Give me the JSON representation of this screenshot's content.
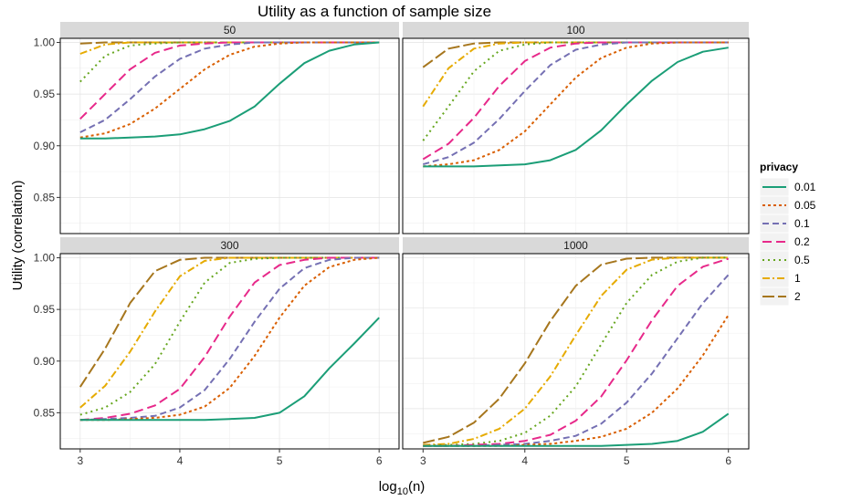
{
  "chart_data": {
    "type": "line",
    "title": "Utility as a function of sample size",
    "xlabel_main": "log",
    "xlabel_sub": "10",
    "xlabel_tail": "(n)",
    "ylabel": "Utility (correlation)",
    "xlim": [
      2.8,
      6.2
    ],
    "x_ticks": [
      3,
      4,
      5,
      6
    ],
    "legend": {
      "title": "privacy",
      "position": "right",
      "entries": [
        "0.01",
        "0.05",
        "0.1",
        "0.2",
        "0.5",
        "1",
        "2"
      ]
    },
    "series_styles": [
      {
        "name": "0.01",
        "color": "#1B9E77",
        "dash": "solid"
      },
      {
        "name": "0.05",
        "color": "#D95F02",
        "dash": "dotted-short"
      },
      {
        "name": "0.1",
        "color": "#7570B3",
        "dash": "dashed"
      },
      {
        "name": "0.2",
        "color": "#E7298A",
        "dash": "longdash"
      },
      {
        "name": "0.5",
        "color": "#66A61E",
        "dash": "dotted"
      },
      {
        "name": "1",
        "color": "#E6AB02",
        "dash": "dotdash"
      },
      {
        "name": "2",
        "color": "#A6761D",
        "dash": "twodash"
      }
    ],
    "x": [
      3.0,
      3.25,
      3.5,
      3.75,
      4.0,
      4.25,
      4.5,
      4.75,
      5.0,
      5.25,
      5.5,
      5.75,
      6.0
    ],
    "panels": [
      {
        "label": "50",
        "ylim": [
          0.815,
          1.004
        ],
        "y_ticks": [
          "0.85",
          "0.90",
          "0.95",
          "1.00"
        ],
        "series": [
          {
            "name": "0.01",
            "values": [
              0.907,
              0.907,
              0.908,
              0.909,
              0.911,
              0.916,
              0.924,
              0.938,
              0.96,
              0.98,
              0.992,
              0.998,
              1.0
            ]
          },
          {
            "name": "0.05",
            "values": [
              0.908,
              0.912,
              0.921,
              0.936,
              0.955,
              0.974,
              0.988,
              0.996,
              0.999,
              1.0,
              1.0,
              1.0,
              1.0
            ]
          },
          {
            "name": "0.1",
            "values": [
              0.913,
              0.925,
              0.945,
              0.967,
              0.984,
              0.994,
              0.998,
              1.0,
              1.0,
              1.0,
              1.0,
              1.0,
              1.0
            ]
          },
          {
            "name": "0.2",
            "values": [
              0.926,
              0.95,
              0.974,
              0.99,
              0.997,
              0.999,
              1.0,
              1.0,
              1.0,
              1.0,
              1.0,
              1.0,
              1.0
            ]
          },
          {
            "name": "0.5",
            "values": [
              0.962,
              0.987,
              0.997,
              0.999,
              1.0,
              1.0,
              1.0,
              1.0,
              1.0,
              1.0,
              1.0,
              1.0,
              1.0
            ]
          },
          {
            "name": "1",
            "values": [
              0.989,
              0.998,
              1.0,
              1.0,
              1.0,
              1.0,
              1.0,
              1.0,
              1.0,
              1.0,
              1.0,
              1.0,
              1.0
            ]
          },
          {
            "name": "2",
            "values": [
              0.999,
              1.0,
              1.0,
              1.0,
              1.0,
              1.0,
              1.0,
              1.0,
              1.0,
              1.0,
              1.0,
              1.0,
              1.0
            ]
          }
        ]
      },
      {
        "label": "100",
        "ylim": [
          0.815,
          1.004
        ],
        "y_ticks": [],
        "series": [
          {
            "name": "0.01",
            "values": [
              0.88,
              0.88,
              0.88,
              0.881,
              0.882,
              0.886,
              0.896,
              0.915,
              0.94,
              0.963,
              0.981,
              0.991,
              0.995
            ]
          },
          {
            "name": "0.05",
            "values": [
              0.88,
              0.882,
              0.886,
              0.896,
              0.914,
              0.94,
              0.966,
              0.985,
              0.995,
              0.999,
              1.0,
              1.0,
              1.0
            ]
          },
          {
            "name": "0.1",
            "values": [
              0.882,
              0.889,
              0.903,
              0.926,
              0.953,
              0.978,
              0.993,
              0.998,
              1.0,
              1.0,
              1.0,
              1.0,
              1.0
            ]
          },
          {
            "name": "0.2",
            "values": [
              0.887,
              0.902,
              0.927,
              0.958,
              0.982,
              0.995,
              0.999,
              1.0,
              1.0,
              1.0,
              1.0,
              1.0,
              1.0
            ]
          },
          {
            "name": "0.5",
            "values": [
              0.905,
              0.938,
              0.972,
              0.992,
              0.998,
              1.0,
              1.0,
              1.0,
              1.0,
              1.0,
              1.0,
              1.0,
              1.0
            ]
          },
          {
            "name": "1",
            "values": [
              0.938,
              0.975,
              0.994,
              0.999,
              1.0,
              1.0,
              1.0,
              1.0,
              1.0,
              1.0,
              1.0,
              1.0,
              1.0
            ]
          },
          {
            "name": "2",
            "values": [
              0.976,
              0.994,
              0.999,
              1.0,
              1.0,
              1.0,
              1.0,
              1.0,
              1.0,
              1.0,
              1.0,
              1.0,
              1.0
            ]
          }
        ]
      },
      {
        "label": "300",
        "ylim": [
          0.815,
          1.004
        ],
        "y_ticks": [
          "0.85",
          "0.90",
          "0.95",
          "1.00"
        ],
        "series": [
          {
            "name": "0.01",
            "values": [
              0.843,
              0.843,
              0.843,
              0.843,
              0.843,
              0.843,
              0.844,
              0.845,
              0.85,
              0.866,
              0.893,
              0.917,
              0.942
            ]
          },
          {
            "name": "0.05",
            "values": [
              0.843,
              0.843,
              0.844,
              0.845,
              0.848,
              0.856,
              0.874,
              0.905,
              0.942,
              0.973,
              0.991,
              0.998,
              1.0
            ]
          },
          {
            "name": "0.1",
            "values": [
              0.843,
              0.844,
              0.845,
              0.847,
              0.855,
              0.872,
              0.902,
              0.938,
              0.97,
              0.99,
              0.998,
              1.0,
              1.0
            ]
          },
          {
            "name": "0.2",
            "values": [
              0.843,
              0.845,
              0.849,
              0.857,
              0.873,
              0.904,
              0.943,
              0.976,
              0.993,
              0.998,
              1.0,
              1.0,
              1.0
            ]
          },
          {
            "name": "0.5",
            "values": [
              0.848,
              0.855,
              0.87,
              0.897,
              0.938,
              0.976,
              0.995,
              0.999,
              1.0,
              1.0,
              1.0,
              1.0,
              1.0
            ]
          },
          {
            "name": "1",
            "values": [
              0.855,
              0.876,
              0.909,
              0.948,
              0.982,
              0.997,
              1.0,
              1.0,
              1.0,
              1.0,
              1.0,
              1.0,
              1.0
            ]
          },
          {
            "name": "2",
            "values": [
              0.875,
              0.912,
              0.956,
              0.987,
              0.998,
              1.0,
              1.0,
              1.0,
              1.0,
              1.0,
              1.0,
              1.0,
              1.0
            ]
          }
        ]
      },
      {
        "label": "1000",
        "ylim": [
          0.81,
          1.004
        ],
        "y_ticks": [],
        "series": [
          {
            "name": "0.01",
            "values": [
              0.813,
              0.813,
              0.813,
              0.813,
              0.813,
              0.813,
              0.813,
              0.813,
              0.814,
              0.815,
              0.818,
              0.827,
              0.845
            ]
          },
          {
            "name": "0.05",
            "values": [
              0.813,
              0.813,
              0.813,
              0.813,
              0.814,
              0.815,
              0.818,
              0.822,
              0.83,
              0.846,
              0.87,
              0.903,
              0.943
            ]
          },
          {
            "name": "0.1",
            "values": [
              0.813,
              0.813,
              0.813,
              0.814,
              0.815,
              0.818,
              0.823,
              0.835,
              0.856,
              0.885,
              0.92,
              0.955,
              0.983
            ]
          },
          {
            "name": "0.2",
            "values": [
              0.813,
              0.813,
              0.814,
              0.815,
              0.818,
              0.824,
              0.838,
              0.862,
              0.898,
              0.938,
              0.972,
              0.991,
              0.999
            ]
          },
          {
            "name": "0.5",
            "values": [
              0.813,
              0.814,
              0.815,
              0.818,
              0.826,
              0.843,
              0.872,
              0.914,
              0.955,
              0.983,
              0.996,
              1.0,
              1.0
            ]
          },
          {
            "name": "1",
            "values": [
              0.814,
              0.815,
              0.82,
              0.83,
              0.85,
              0.882,
              0.923,
              0.962,
              0.988,
              0.998,
              1.0,
              1.0,
              1.0
            ]
          },
          {
            "name": "2",
            "values": [
              0.816,
              0.822,
              0.836,
              0.86,
              0.895,
              0.937,
              0.972,
              0.993,
              0.999,
              1.0,
              1.0,
              1.0,
              1.0
            ]
          }
        ]
      }
    ]
  }
}
